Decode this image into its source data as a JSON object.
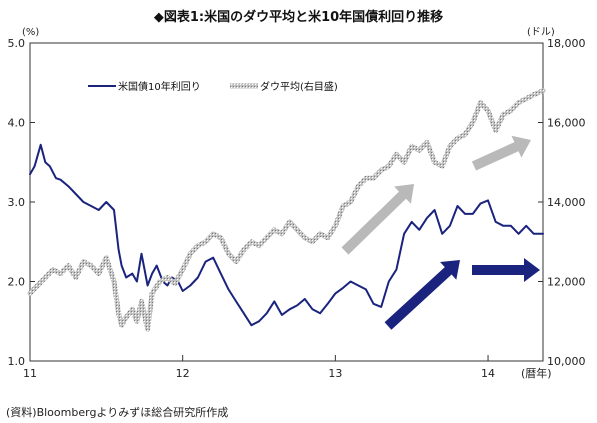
{
  "title": "◆図表1:米国のダウ平均と米10年国債利回り推移",
  "source": "(資料)Bloombergよりみずほ総合研究所作成",
  "chart_data": {
    "type": "line",
    "title": "◆図表1:米国のダウ平均と米10年国債利回り推移",
    "x_axis": {
      "label": "(暦年)",
      "ticks": [
        "11",
        "12",
        "13",
        "14"
      ],
      "range": [
        2011.0,
        2014.36
      ]
    },
    "y_left": {
      "unit": "(%)",
      "range": [
        1.0,
        5.0
      ],
      "ticks": [
        "1.0",
        "2.0",
        "3.0",
        "4.0",
        "5.0"
      ]
    },
    "y_right": {
      "unit": "(ドル)",
      "range": [
        10000,
        18000
      ],
      "ticks": [
        "10,000",
        "12,000",
        "14,000",
        "16,000",
        "18,000"
      ]
    },
    "grid": false,
    "legend": {
      "position": "top-left",
      "entries": [
        "米国債10年利回り",
        "ダウ平均(右目盛)"
      ]
    },
    "series": [
      {
        "name": "米国債10年利回り",
        "axis": "left",
        "color": "#1a237e",
        "x": [
          2011.0,
          2011.03,
          2011.07,
          2011.1,
          2011.13,
          2011.17,
          2011.2,
          2011.25,
          2011.3,
          2011.35,
          2011.4,
          2011.45,
          2011.5,
          2011.55,
          2011.58,
          2011.6,
          2011.63,
          2011.67,
          2011.7,
          2011.73,
          2011.77,
          2011.8,
          2011.83,
          2011.87,
          2011.9,
          2011.93,
          2011.97,
          2012.0,
          2012.05,
          2012.1,
          2012.15,
          2012.2,
          2012.25,
          2012.3,
          2012.35,
          2012.4,
          2012.45,
          2012.5,
          2012.55,
          2012.6,
          2012.65,
          2012.7,
          2012.75,
          2012.8,
          2012.85,
          2012.9,
          2012.95,
          2013.0,
          2013.05,
          2013.1,
          2013.15,
          2013.2,
          2013.25,
          2013.3,
          2013.35,
          2013.4,
          2013.45,
          2013.5,
          2013.55,
          2013.6,
          2013.65,
          2013.7,
          2013.75,
          2013.8,
          2013.85,
          2013.9,
          2013.95,
          2014.0,
          2014.05,
          2014.1,
          2014.15,
          2014.2,
          2014.25,
          2014.3,
          2014.36
        ],
        "values": [
          3.35,
          3.45,
          3.72,
          3.5,
          3.45,
          3.3,
          3.28,
          3.2,
          3.1,
          3.0,
          2.95,
          2.9,
          3.0,
          2.9,
          2.4,
          2.2,
          2.05,
          2.1,
          2.0,
          2.35,
          1.95,
          2.1,
          2.2,
          2.0,
          1.95,
          2.05,
          2.0,
          1.88,
          1.95,
          2.05,
          2.25,
          2.3,
          2.1,
          1.9,
          1.75,
          1.6,
          1.45,
          1.5,
          1.6,
          1.75,
          1.58,
          1.65,
          1.7,
          1.78,
          1.65,
          1.6,
          1.72,
          1.85,
          1.92,
          2.0,
          1.95,
          1.9,
          1.72,
          1.68,
          2.0,
          2.15,
          2.6,
          2.75,
          2.65,
          2.8,
          2.9,
          2.6,
          2.7,
          2.95,
          2.85,
          2.85,
          2.98,
          3.02,
          2.75,
          2.7,
          2.7,
          2.6,
          2.7,
          2.6,
          2.6
        ]
      },
      {
        "name": "ダウ平均(右目盛)",
        "axis": "right",
        "color": "#a8a8a8",
        "x": [
          2011.0,
          2011.05,
          2011.1,
          2011.15,
          2011.2,
          2011.25,
          2011.3,
          2011.35,
          2011.4,
          2011.45,
          2011.5,
          2011.55,
          2011.58,
          2011.6,
          2011.63,
          2011.67,
          2011.7,
          2011.73,
          2011.77,
          2011.8,
          2011.85,
          2011.9,
          2011.95,
          2012.0,
          2012.05,
          2012.1,
          2012.15,
          2012.2,
          2012.25,
          2012.3,
          2012.35,
          2012.4,
          2012.45,
          2012.5,
          2012.55,
          2012.6,
          2012.65,
          2012.7,
          2012.75,
          2012.8,
          2012.85,
          2012.9,
          2012.95,
          2013.0,
          2013.05,
          2013.1,
          2013.15,
          2013.2,
          2013.25,
          2013.3,
          2013.35,
          2013.4,
          2013.45,
          2013.5,
          2013.55,
          2013.6,
          2013.65,
          2013.7,
          2013.75,
          2013.8,
          2013.85,
          2013.9,
          2013.95,
          2014.0,
          2014.05,
          2014.1,
          2014.15,
          2014.2,
          2014.25,
          2014.3,
          2014.36
        ],
        "values": [
          11700,
          11900,
          12100,
          12300,
          12200,
          12400,
          12100,
          12500,
          12400,
          12200,
          12600,
          12000,
          11200,
          10900,
          11100,
          11300,
          11000,
          11500,
          10800,
          11700,
          12000,
          12100,
          11950,
          12300,
          12700,
          12900,
          13000,
          13200,
          13100,
          12700,
          12500,
          12800,
          13000,
          12900,
          13100,
          13300,
          13200,
          13500,
          13300,
          13100,
          13000,
          13200,
          13100,
          13400,
          13900,
          14000,
          14400,
          14600,
          14600,
          14800,
          14900,
          15200,
          15000,
          15400,
          15300,
          15500,
          15000,
          14900,
          15400,
          15600,
          15700,
          16000,
          16500,
          16300,
          15800,
          16200,
          16300,
          16500,
          16600,
          16700,
          16800
        ]
      }
    ],
    "annotations": [
      {
        "type": "arrow",
        "color": "gray",
        "direction": "up-right"
      },
      {
        "type": "arrow",
        "color": "gray",
        "direction": "up-right"
      },
      {
        "type": "arrow",
        "color": "navy",
        "direction": "up-right"
      },
      {
        "type": "arrow",
        "color": "navy",
        "direction": "right"
      }
    ]
  }
}
